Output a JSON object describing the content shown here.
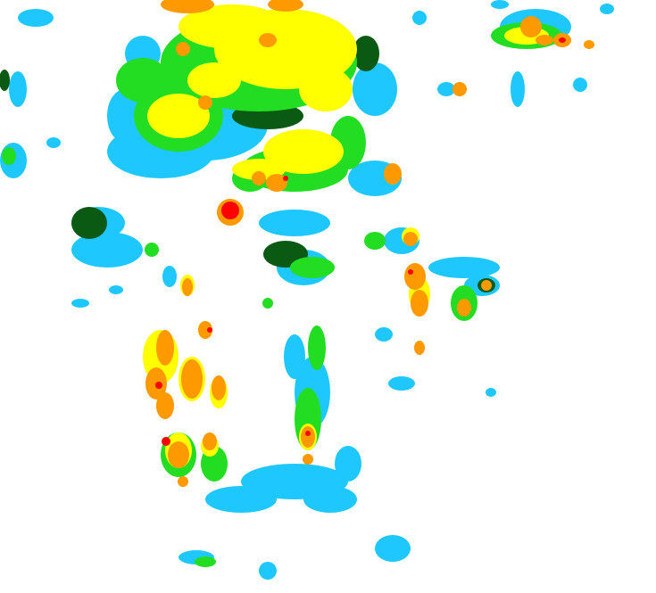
{
  "map": {
    "type": "precipitation-radar",
    "palette": {
      "light": "#1ec8ff",
      "light_moderate": "#0a5a14",
      "moderate": "#22dd22",
      "heavy": "#ffff00",
      "very_heavy": "#ff9900",
      "intense": "#ff0000"
    }
  }
}
